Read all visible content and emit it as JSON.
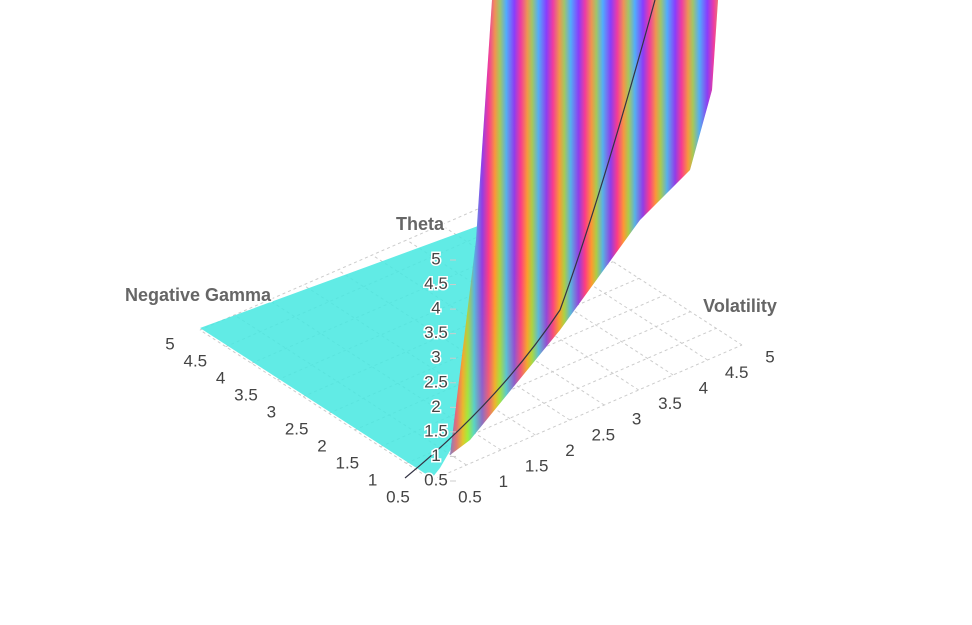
{
  "chart_data": {
    "type": "surface3d",
    "x_label": "Volatility",
    "y_label": "Negative Gamma",
    "z_label": "Theta",
    "xlim": [
      0.5,
      5
    ],
    "xticks": [
      0.5,
      1,
      1.5,
      2,
      2.5,
      3,
      3.5,
      4,
      4.5,
      5
    ],
    "ylim": [
      0.5,
      5
    ],
    "yticks": [
      0.5,
      1,
      1.5,
      2,
      2.5,
      3,
      3.5,
      4,
      4.5,
      5
    ],
    "zlim": [
      0.5,
      5
    ],
    "zticks": [
      0.5,
      1,
      1.5,
      2,
      2.5,
      3,
      3.5,
      4,
      4.5,
      5
    ],
    "grid": true
  }
}
